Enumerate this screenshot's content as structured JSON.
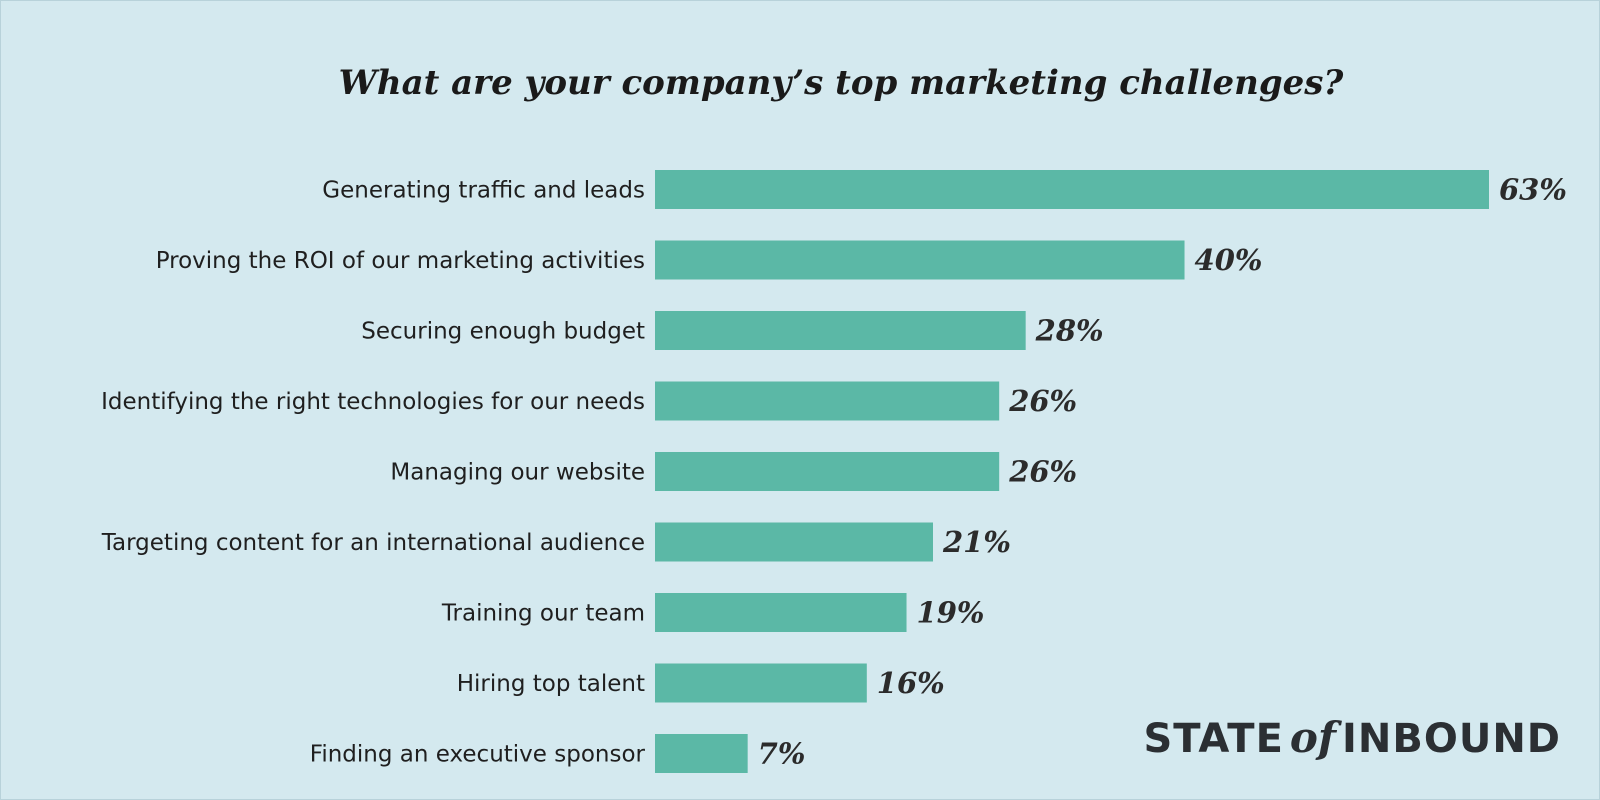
{
  "chart_data": {
    "type": "bar",
    "orientation": "horizontal",
    "title": "What are your company’s top marketing challenges?",
    "categories": [
      "Generating traffic and leads",
      "Proving the ROI of our marketing activities",
      "Securing enough budget",
      "Identifying the right technologies for our needs",
      "Managing our website",
      "Targeting content for an international audience",
      "Training our team",
      "Hiring top talent",
      "Finding an executive sponsor"
    ],
    "values": [
      63,
      40,
      28,
      26,
      26,
      21,
      19,
      16,
      7
    ],
    "value_labels": [
      "63%",
      "40%",
      "28%",
      "26%",
      "26%",
      "21%",
      "19%",
      "16%",
      "7%"
    ],
    "unit": "%",
    "xlim": [
      0,
      63
    ],
    "grid": false,
    "bar_color": "#5bb8a6"
  },
  "logo": {
    "part1": "STATE",
    "part2": "of",
    "part3": "INBOUND"
  },
  "colors": {
    "background": "#d4e9ef",
    "bar": "#5bb8a6",
    "text": "#1f1f1f"
  }
}
